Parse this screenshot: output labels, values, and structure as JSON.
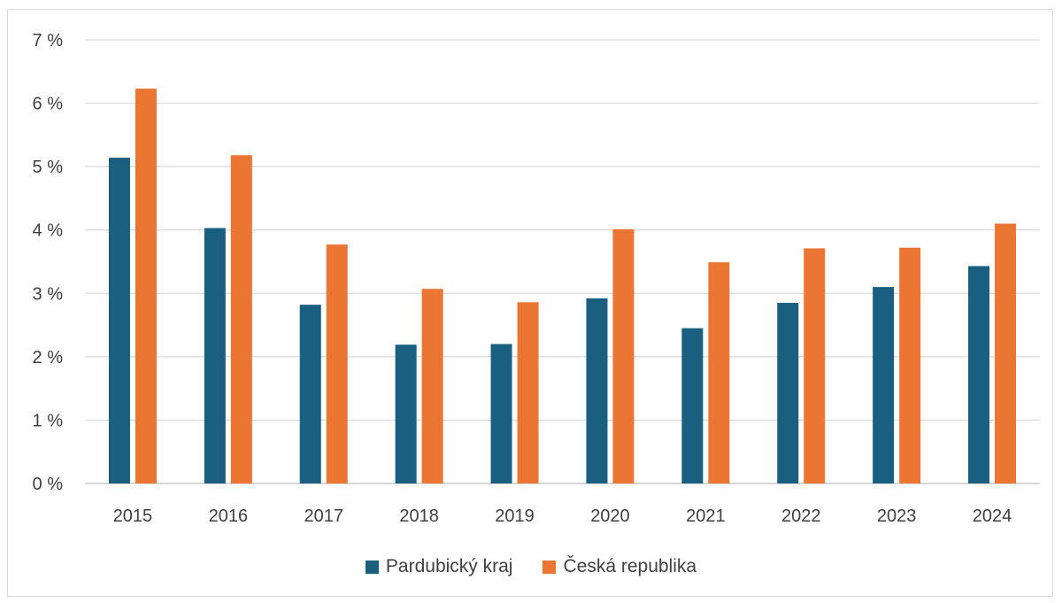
{
  "chart_data": {
    "type": "bar",
    "title": "",
    "xlabel": "",
    "ylabel": "",
    "categories": [
      "2015",
      "2016",
      "2017",
      "2018",
      "2019",
      "2020",
      "2021",
      "2022",
      "2023",
      "2024"
    ],
    "series": [
      {
        "name": "Pardubický kraj",
        "color": "#1a5f80",
        "values": [
          5.14,
          4.03,
          2.82,
          2.19,
          2.2,
          2.92,
          2.45,
          2.85,
          3.1,
          3.43
        ]
      },
      {
        "name": "Česká republika",
        "color": "#eb7533",
        "values": [
          6.23,
          5.18,
          3.77,
          3.07,
          2.86,
          4.01,
          3.49,
          3.71,
          3.72,
          4.1
        ]
      }
    ],
    "ylim": [
      0,
      7
    ],
    "yticks": [
      "0 %",
      "1 %",
      "2 %",
      "3 %",
      "4 %",
      "5 %",
      "6 %",
      "7 %"
    ],
    "grid": true,
    "legend_position": "bottom"
  }
}
